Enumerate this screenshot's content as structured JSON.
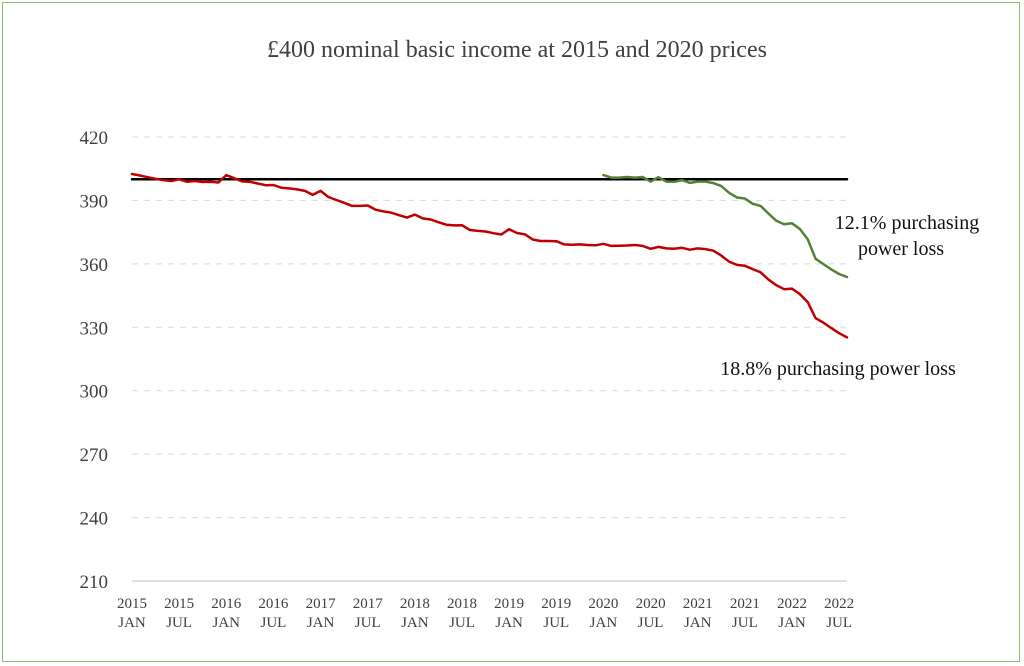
{
  "chart_data": {
    "type": "line",
    "title": "£400 nominal basic income at 2015 and 2020 prices",
    "xlabel": "",
    "ylabel": "",
    "ylim": [
      210,
      420
    ],
    "yticks": [
      210,
      240,
      270,
      300,
      330,
      360,
      390,
      420
    ],
    "grid": "horizontal-dashed",
    "legend": "none",
    "x_tick_labels": [
      {
        "year": "2015",
        "month": "JAN",
        "index": 0
      },
      {
        "year": "2015",
        "month": "JUL",
        "index": 6
      },
      {
        "year": "2016",
        "month": "JAN",
        "index": 12
      },
      {
        "year": "2016",
        "month": "JUL",
        "index": 18
      },
      {
        "year": "2017",
        "month": "JAN",
        "index": 24
      },
      {
        "year": "2017",
        "month": "JUL",
        "index": 30
      },
      {
        "year": "2018",
        "month": "JAN",
        "index": 36
      },
      {
        "year": "2018",
        "month": "JUL",
        "index": 42
      },
      {
        "year": "2019",
        "month": "JAN",
        "index": 48
      },
      {
        "year": "2019",
        "month": "JUL",
        "index": 54
      },
      {
        "year": "2020",
        "month": "JAN",
        "index": 60
      },
      {
        "year": "2020",
        "month": "JUL",
        "index": 66
      },
      {
        "year": "2021",
        "month": "JAN",
        "index": 72
      },
      {
        "year": "2021",
        "month": "JUL",
        "index": 78
      },
      {
        "year": "2022",
        "month": "JAN",
        "index": 84
      },
      {
        "year": "2022",
        "month": "JUL",
        "index": 90
      }
    ],
    "series": [
      {
        "color": "#000000",
        "start_index": 0,
        "values": [
          400,
          400
        ]
      },
      {
        "color": "#c00000",
        "start_index": 0,
        "values": [
          402.5,
          401.8,
          401.0,
          400.2,
          399.6,
          399.2,
          400.0,
          398.8,
          399.2,
          398.7,
          398.8,
          398.5,
          402.0,
          400.5,
          399.0,
          398.8,
          398.0,
          397.2,
          397.3,
          396.0,
          395.7,
          395.2,
          394.5,
          392.6,
          394.5,
          391.6,
          390.2,
          388.9,
          387.4,
          387.4,
          387.6,
          385.6,
          384.8,
          384.2,
          383.0,
          381.9,
          383.3,
          381.5,
          381.0,
          379.7,
          378.5,
          378.2,
          378.3,
          376.0,
          375.6,
          375.3,
          374.5,
          373.9,
          376.4,
          374.6,
          374.0,
          371.5,
          370.8,
          370.8,
          370.7,
          369.2,
          369.0,
          369.2,
          368.9,
          368.8,
          369.5,
          368.5,
          368.6,
          368.7,
          368.9,
          368.5,
          367.1,
          368.0,
          367.3,
          367.1,
          367.6,
          366.7,
          367.3,
          367.0,
          366.2,
          363.9,
          361.0,
          359.5,
          359.1,
          357.5,
          356.0,
          352.6,
          349.9,
          348.0,
          348.3,
          345.7,
          341.9,
          334.3,
          332.2,
          329.6,
          327.2,
          325.2
        ]
      },
      {
        "color": "#548235",
        "start_index": 60,
        "values": [
          402.0,
          400.8,
          400.8,
          401.1,
          400.8,
          401.1,
          398.9,
          401.0,
          398.9,
          398.8,
          399.6,
          398.3,
          398.9,
          398.9,
          398.2,
          396.8,
          393.6,
          391.4,
          390.9,
          388.4,
          387.4,
          383.8,
          380.4,
          378.7,
          379.2,
          376.5,
          371.6,
          362.4,
          359.9,
          357.4,
          355.2,
          353.8
        ]
      }
    ],
    "annotations": [
      {
        "line1": "12.1% purchasing",
        "line2": "power loss"
      },
      {
        "line1": "18.8% purchasing power loss"
      }
    ]
  }
}
